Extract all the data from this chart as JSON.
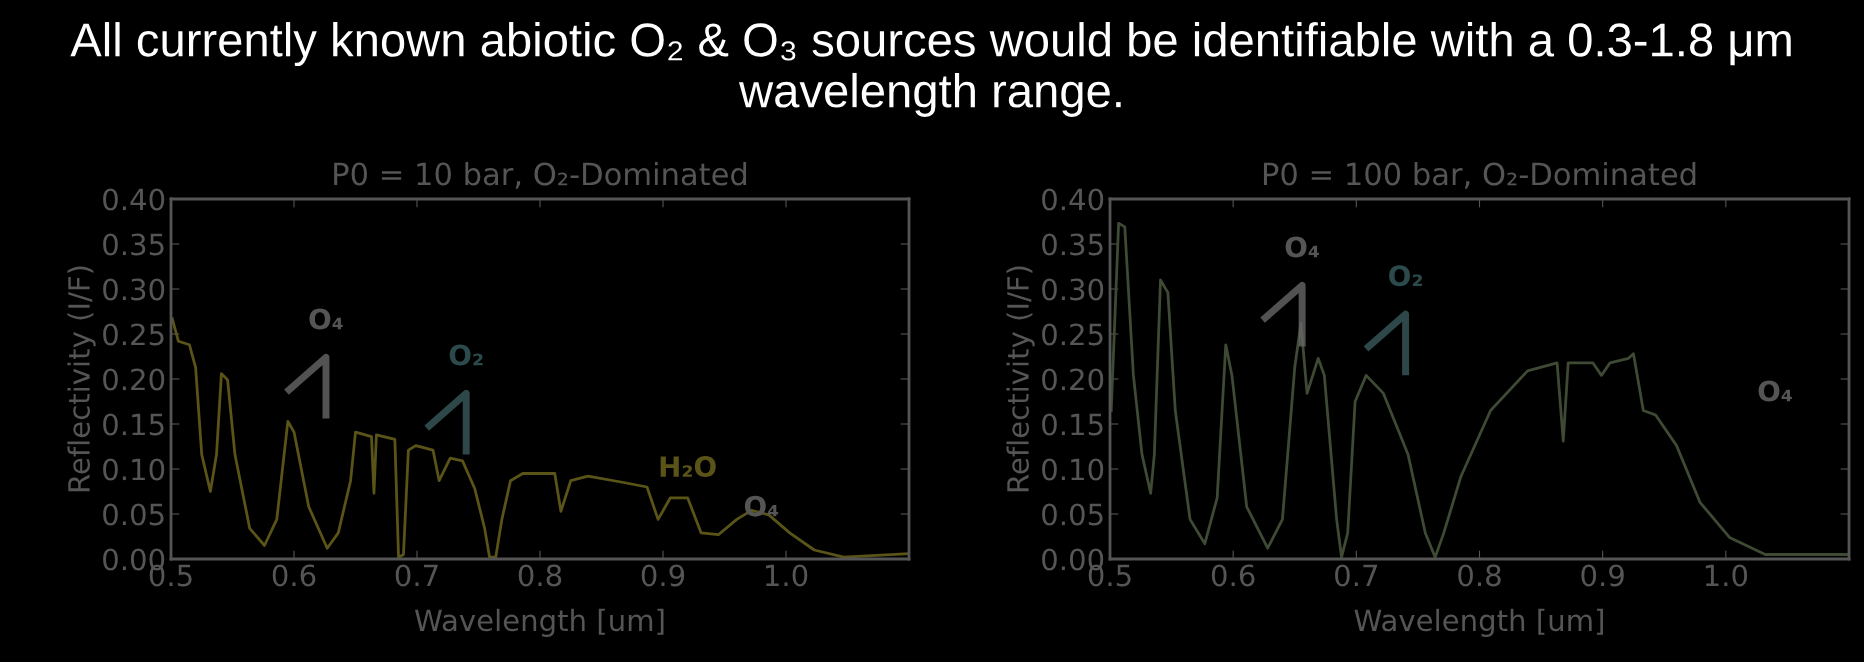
{
  "chart_data": [
    {
      "type": "line",
      "title": "P0 = 10 bar, O₂-Dominated",
      "xlabel": "Wavelength [um]",
      "ylabel": "Reflectivity (I/F)",
      "xlim": [
        0.5,
        1.1
      ],
      "ylim": [
        0.0,
        0.4
      ],
      "xticks": [
        {
          "value": 0.5,
          "label": "0.5"
        },
        {
          "value": 0.6,
          "label": "0.6"
        },
        {
          "value": 0.7,
          "label": "0.7"
        },
        {
          "value": 0.8,
          "label": "0.8"
        },
        {
          "value": 0.9,
          "label": "0.9"
        },
        {
          "value": 1.0,
          "label": "1.0"
        }
      ],
      "yticks": [
        {
          "value": 0,
          "label": "0.00"
        },
        {
          "value": 0.05,
          "label": "0.05"
        },
        {
          "value": 0.1,
          "label": "0.10"
        },
        {
          "value": 0.15,
          "label": "0.15"
        },
        {
          "value": 0.2,
          "label": "0.20"
        },
        {
          "value": 0.25,
          "label": "0.25"
        },
        {
          "value": 0.3,
          "label": "0.30"
        },
        {
          "value": 0.35,
          "label": "0.35"
        },
        {
          "value": 0.4,
          "label": "0.40"
        }
      ],
      "grid": false,
      "legend": false,
      "annotations": [
        "O₄",
        "O₂",
        "H₂O",
        "O₄"
      ],
      "series": [
        {
          "color": "#5a5418",
          "x": [
            0.501,
            0.506,
            0.515,
            0.52,
            0.525,
            0.532,
            0.537,
            0.541,
            0.546,
            0.552,
            0.564,
            0.576,
            0.586,
            0.595,
            0.6,
            0.612,
            0.627,
            0.636,
            0.646,
            0.65,
            0.658,
            0.663,
            0.665,
            0.667,
            0.682,
            0.685,
            0.689,
            0.693,
            0.699,
            0.713,
            0.718,
            0.727,
            0.737,
            0.747,
            0.755,
            0.759,
            0.764,
            0.769,
            0.776,
            0.786,
            0.812,
            0.817,
            0.825,
            0.839,
            0.868,
            0.887,
            0.896,
            0.906,
            0.92,
            0.931,
            0.945,
            0.96,
            0.972,
            0.986,
            1.003,
            1.023,
            1.047,
            1.099
          ],
          "values": [
            0.267,
            0.242,
            0.238,
            0.213,
            0.116,
            0.075,
            0.116,
            0.206,
            0.199,
            0.116,
            0.034,
            0.015,
            0.044,
            0.153,
            0.141,
            0.058,
            0.012,
            0.029,
            0.087,
            0.141,
            0.138,
            0.136,
            0.073,
            0.138,
            0.133,
            0.002,
            0.005,
            0.121,
            0.126,
            0.121,
            0.087,
            0.112,
            0.109,
            0.078,
            0.034,
            0.002,
            0.002,
            0.044,
            0.087,
            0.095,
            0.095,
            0.053,
            0.087,
            0.092,
            0.085,
            0.08,
            0.044,
            0.068,
            0.068,
            0.029,
            0.027,
            0.044,
            0.054,
            0.049,
            0.029,
            0.01,
            0.002,
            0.006
          ]
        }
      ]
    },
    {
      "type": "line",
      "title": "P0 = 100 bar, O₂-Dominated",
      "xlabel": "Wavelength [um]",
      "ylabel": "Reflectivity (I/F)",
      "xlim": [
        0.5,
        1.1
      ],
      "ylim": [
        0.0,
        0.4
      ],
      "xticks": [
        {
          "value": 0.5,
          "label": "0.5"
        },
        {
          "value": 0.6,
          "label": "0.6"
        },
        {
          "value": 0.7,
          "label": "0.7"
        },
        {
          "value": 0.8,
          "label": "0.8"
        },
        {
          "value": 0.9,
          "label": "0.9"
        },
        {
          "value": 1.0,
          "label": "1.0"
        }
      ],
      "yticks": [
        {
          "value": 0,
          "label": "0.00"
        },
        {
          "value": 0.05,
          "label": "0.05"
        },
        {
          "value": 0.1,
          "label": "0.10"
        },
        {
          "value": 0.15,
          "label": "0.15"
        },
        {
          "value": 0.2,
          "label": "0.20"
        },
        {
          "value": 0.25,
          "label": "0.25"
        },
        {
          "value": 0.3,
          "label": "0.30"
        },
        {
          "value": 0.35,
          "label": "0.35"
        },
        {
          "value": 0.4,
          "label": "0.40"
        }
      ],
      "grid": false,
      "legend": false,
      "annotations": [
        "O₄",
        "O₂",
        "O₄"
      ],
      "series": [
        {
          "color": "#3e4a34",
          "x": [
            0.501,
            0.507,
            0.512,
            0.519,
            0.526,
            0.533,
            0.536,
            0.541,
            0.547,
            0.553,
            0.565,
            0.577,
            0.587,
            0.594,
            0.599,
            0.611,
            0.628,
            0.64,
            0.65,
            0.655,
            0.66,
            0.669,
            0.674,
            0.684,
            0.688,
            0.693,
            0.699,
            0.708,
            0.722,
            0.742,
            0.756,
            0.764,
            0.771,
            0.785,
            0.809,
            0.839,
            0.863,
            0.868,
            0.872,
            0.892,
            0.899,
            0.906,
            0.921,
            0.925,
            0.933,
            0.943,
            0.96,
            0.979,
            1.003,
            1.032,
            1.1
          ],
          "values": [
            0.165,
            0.373,
            0.369,
            0.204,
            0.116,
            0.073,
            0.116,
            0.31,
            0.296,
            0.165,
            0.044,
            0.017,
            0.068,
            0.238,
            0.204,
            0.058,
            0.012,
            0.044,
            0.213,
            0.262,
            0.184,
            0.223,
            0.204,
            0.044,
            0.002,
            0.029,
            0.175,
            0.204,
            0.184,
            0.116,
            0.029,
            0.002,
            0.029,
            0.092,
            0.165,
            0.209,
            0.218,
            0.131,
            0.218,
            0.218,
            0.204,
            0.218,
            0.223,
            0.228,
            0.165,
            0.16,
            0.126,
            0.063,
            0.024,
            0.005,
            0.005
          ]
        }
      ]
    },
    {
      "type": "other",
      "annotations": [
        "All currently known abiotic O₂ & O₃ sources would be identifiable with a 0.3-1.8 μm wavelength range."
      ]
    }
  ]
}
